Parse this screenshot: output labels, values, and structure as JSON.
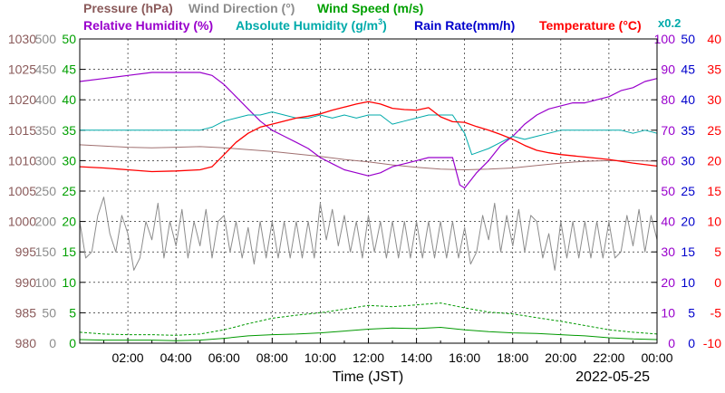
{
  "chart_data": {
    "type": "line",
    "date": "2022-05-25",
    "xlabel": "Time (JST)",
    "x_ticks": [
      "02:00",
      "04:00",
      "06:00",
      "08:00",
      "10:00",
      "12:00",
      "14:00",
      "16:00",
      "18:00",
      "20:00",
      "22:00",
      "00:00"
    ],
    "x_range_hours": [
      0,
      24
    ],
    "grid": true,
    "axis_labels": {
      "pressure": {
        "text": "Pressure (hPa)",
        "color": "#8a5a5a"
      },
      "wind_direction": {
        "text": "Wind Direction (°)",
        "color": "#8c8c8c"
      },
      "wind_speed": {
        "text": "Wind Speed (m/s)",
        "color": "#00a000"
      },
      "relative_humidity": {
        "text": "Relative Humidity (%)",
        "color": "#9900cc"
      },
      "absolute_humidity": {
        "text": "Absolute Humidity (g/m",
        "sup": "3",
        "close": ")",
        "color": "#00aaaa"
      },
      "rain_rate": {
        "text": "Rain Rate(mm/h)",
        "color": "#0000cc"
      },
      "temperature": {
        "text": "Temperature (°C)",
        "color": "#ff0000"
      },
      "abs_scale_note": {
        "text": "x0.2",
        "color": "#00aaaa"
      }
    },
    "axes": {
      "pressure": {
        "min": 980,
        "max": 1030,
        "ticks": [
          "1030",
          "1025",
          "1020",
          "1015",
          "1010",
          "1005",
          "1000",
          "995",
          "990",
          "985",
          "980"
        ]
      },
      "wind_direction": {
        "min": 0,
        "max": 500,
        "ticks": [
          "500",
          "450",
          "400",
          "350",
          "300",
          "250",
          "200",
          "150",
          "100",
          "50",
          "0"
        ]
      },
      "wind_speed": {
        "min": 0,
        "max": 50,
        "ticks": [
          "50",
          "45",
          "40",
          "35",
          "30",
          "25",
          "20",
          "15",
          "10",
          "5",
          "0"
        ]
      },
      "relative_humidity": {
        "min": 0,
        "max": 100,
        "ticks": [
          "100",
          "90",
          "80",
          "70",
          "60",
          "50",
          "40",
          "30",
          "20",
          "10",
          "0"
        ]
      },
      "rain_rate": {
        "min": 0,
        "max": 50,
        "ticks": [
          "50",
          "45",
          "40",
          "35",
          "30",
          "25",
          "20",
          "15",
          "10",
          "5",
          "0"
        ]
      },
      "temperature": {
        "min": -10,
        "max": 40,
        "ticks": [
          "40",
          "35",
          "30",
          "25",
          "20",
          "15",
          "10",
          "5",
          "0",
          "-5",
          "-10"
        ]
      }
    },
    "series": [
      {
        "name": "Pressure",
        "axis": "pressure",
        "color": "#a07070",
        "width": 1,
        "x": [
          0,
          1,
          2,
          3,
          4,
          5,
          6,
          7,
          8,
          9,
          10,
          11,
          12,
          13,
          14,
          15,
          16,
          17,
          18,
          19,
          20,
          21,
          22,
          23,
          24
        ],
        "values": [
          1012.6,
          1012.4,
          1012.2,
          1012.1,
          1012.2,
          1012.3,
          1012.1,
          1011.8,
          1011.5,
          1011.1,
          1010.7,
          1010.2,
          1009.8,
          1009.3,
          1008.9,
          1008.6,
          1008.5,
          1008.6,
          1008.8,
          1009.2,
          1009.6,
          1009.9,
          1010.0,
          1010.0,
          1009.9
        ]
      },
      {
        "name": "Wind Direction",
        "axis": "wind_direction",
        "color": "#8c8c8c",
        "width": 1,
        "style": "jagged",
        "x": [
          0,
          0.5,
          1,
          1.5,
          2,
          2.5,
          3,
          3.5,
          4,
          4.5,
          5,
          5.5,
          6,
          6.5,
          7,
          7.5,
          8,
          8.5,
          9,
          9.5,
          10,
          10.5,
          11,
          11.5,
          12,
          12.5,
          13,
          13.5,
          14,
          14.5,
          15,
          15.5,
          16,
          16.5,
          17,
          17.5,
          18,
          18.5,
          19,
          19.5,
          20,
          20.5,
          21,
          21.5,
          22,
          22.5,
          23,
          23.5,
          24
        ],
        "values": [
          200,
          150,
          240,
          150,
          180,
          140,
          170,
          140,
          160,
          140,
          160,
          140,
          210,
          200,
          190,
          200,
          200,
          200,
          200,
          200,
          230,
          220,
          210,
          200,
          210,
          200,
          200,
          200,
          200,
          200,
          200,
          200,
          190,
          150,
          170,
          150,
          160,
          150,
          200,
          180,
          200,
          200,
          200,
          200,
          200,
          150,
          160,
          150,
          170
        ]
      },
      {
        "name": "Wind Speed",
        "axis": "wind_speed",
        "color": "#009900",
        "width": 1,
        "x": [
          0,
          1,
          2,
          3,
          4,
          5,
          6,
          7,
          8,
          9,
          10,
          11,
          12,
          13,
          14,
          15,
          16,
          17,
          18,
          19,
          20,
          21,
          22,
          23,
          24
        ],
        "values": [
          0.6,
          0.5,
          0.5,
          0.5,
          0.4,
          0.5,
          0.8,
          1.2,
          1.4,
          1.5,
          1.7,
          2.0,
          2.3,
          2.5,
          2.4,
          2.6,
          2.2,
          1.9,
          1.7,
          1.6,
          1.4,
          1.2,
          0.9,
          0.7,
          0.6
        ]
      },
      {
        "name": "Wind Speed (max)",
        "axis": "wind_speed",
        "color": "#009900",
        "width": 1,
        "dash": "3,2",
        "x": [
          0,
          1,
          2,
          3,
          4,
          5,
          6,
          7,
          8,
          9,
          10,
          11,
          12,
          13,
          14,
          15,
          16,
          17,
          18,
          19,
          20,
          21,
          22,
          23,
          24
        ],
        "values": [
          1.8,
          1.5,
          1.4,
          1.4,
          1.3,
          1.5,
          2.2,
          3.2,
          4.1,
          4.6,
          5.0,
          5.6,
          6.2,
          6.0,
          6.3,
          6.6,
          5.8,
          5.1,
          4.8,
          4.2,
          3.6,
          2.9,
          2.2,
          1.8,
          1.5
        ]
      },
      {
        "name": "Relative Humidity",
        "axis": "relative_humidity",
        "color": "#9900cc",
        "width": 1.2,
        "x": [
          0,
          1,
          2,
          3,
          4,
          4.5,
          5,
          5.5,
          6,
          6.5,
          7,
          7.5,
          8,
          8.5,
          9,
          9.5,
          10,
          10.5,
          11,
          11.5,
          12,
          12.5,
          13,
          13.5,
          14,
          14.5,
          15,
          15.5,
          15.8,
          16,
          16.2,
          16.5,
          17,
          17.5,
          18,
          18.5,
          19,
          19.5,
          20,
          20.5,
          21,
          21.5,
          22,
          22.5,
          23,
          23.5,
          24
        ],
        "values": [
          86,
          87,
          88,
          89,
          89,
          89,
          89,
          88,
          85,
          81,
          77,
          73,
          70,
          68,
          66,
          64,
          61,
          59,
          57,
          56,
          55,
          56,
          58,
          59,
          60,
          61,
          61,
          61,
          52,
          51,
          53,
          56,
          60,
          65,
          68,
          72,
          75,
          77,
          78,
          79,
          79,
          80,
          81,
          83,
          84,
          86,
          87
        ]
      },
      {
        "name": "Absolute Humidity",
        "axis": "relative_humidity",
        "color": "#00aaaa",
        "width": 1,
        "x": [
          0,
          1,
          2,
          3,
          4,
          5,
          5.5,
          6,
          6.5,
          7,
          7.5,
          8,
          8.5,
          9,
          9.5,
          10,
          10.5,
          11,
          11.5,
          12,
          12.5,
          13,
          13.5,
          14,
          14.5,
          15,
          15.5,
          16,
          16.3,
          17,
          17.5,
          18,
          18.5,
          19,
          19.5,
          20,
          20.5,
          21,
          21.5,
          22,
          22.5,
          23,
          23.5,
          24
        ],
        "values": [
          70,
          70,
          70,
          70,
          70,
          70,
          71,
          73,
          74,
          75,
          75,
          76,
          75,
          74,
          74,
          75,
          74,
          75,
          74,
          75,
          75,
          72,
          73,
          74,
          75,
          75,
          75,
          69,
          62,
          64,
          66,
          68,
          67,
          68,
          69,
          70,
          70,
          70,
          70,
          70,
          70,
          69,
          70,
          69
        ]
      },
      {
        "name": "Rain Rate",
        "axis": "rain_rate",
        "color": "#0000cc",
        "width": 1,
        "x": [
          0,
          24
        ],
        "values": [
          0,
          0
        ]
      },
      {
        "name": "Temperature",
        "axis": "temperature",
        "color": "#ff0000",
        "width": 1.3,
        "x": [
          0,
          1,
          2,
          3,
          4,
          5,
          5.5,
          6,
          6.5,
          7,
          7.5,
          8,
          8.5,
          9,
          9.5,
          10,
          10.5,
          11,
          11.5,
          12,
          12.5,
          13,
          13.5,
          14,
          14.5,
          15,
          15.5,
          16,
          16.5,
          17,
          17.5,
          18,
          18.5,
          19,
          19.5,
          20,
          21,
          22,
          23,
          24
        ],
        "values": [
          19,
          18.8,
          18.5,
          18.2,
          18.3,
          18.5,
          19,
          21,
          23,
          24.5,
          25.5,
          26,
          26.5,
          27,
          27.3,
          27.7,
          28.3,
          28.8,
          29.3,
          29.7,
          29.3,
          28.6,
          28.4,
          28.3,
          28.7,
          27.2,
          26.4,
          26.3,
          25.6,
          25.0,
          24.3,
          23.5,
          22.5,
          21.7,
          21.3,
          21,
          20.6,
          20.2,
          19.6,
          19.1
        ]
      }
    ]
  }
}
